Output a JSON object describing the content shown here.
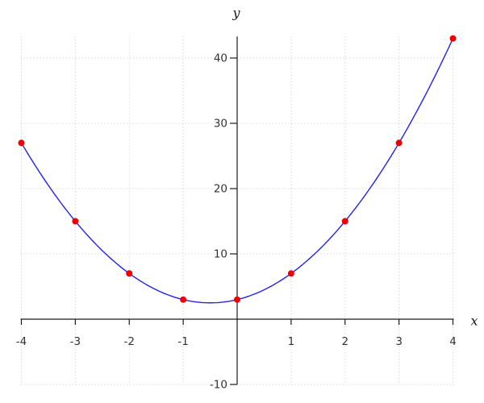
{
  "chart_data": {
    "type": "line",
    "title": "",
    "xlabel": "x",
    "ylabel": "y",
    "xlim": [
      -4,
      4
    ],
    "ylim": [
      -10,
      43.3
    ],
    "x_ticks": [
      -4,
      -3,
      -2,
      -1,
      1,
      2,
      3,
      4
    ],
    "y_ticks": [
      -10,
      10,
      20,
      30,
      40
    ],
    "grid": true,
    "legend": "none",
    "series": [
      {
        "name": "quadratic-curve",
        "type": "line",
        "color": "#2222ee",
        "stroke_width": 1.4,
        "polynomial_coefficients_c0_c1_c2": [
          3,
          2,
          2
        ],
        "x_range": [
          -4,
          4
        ]
      },
      {
        "name": "data-points",
        "type": "scatter",
        "color": "#ee0000",
        "marker": "circle",
        "marker_radius": 4,
        "x": [
          -4,
          -3,
          -2,
          -1,
          0,
          1,
          2,
          3,
          4
        ],
        "y": [
          27,
          15,
          7,
          3,
          3,
          7,
          15,
          27,
          43
        ]
      }
    ]
  },
  "colors": {
    "background": "#ffffff",
    "grid": "#c8c8c8",
    "axis": "#1a1a1a",
    "tick_label": "#333333"
  }
}
